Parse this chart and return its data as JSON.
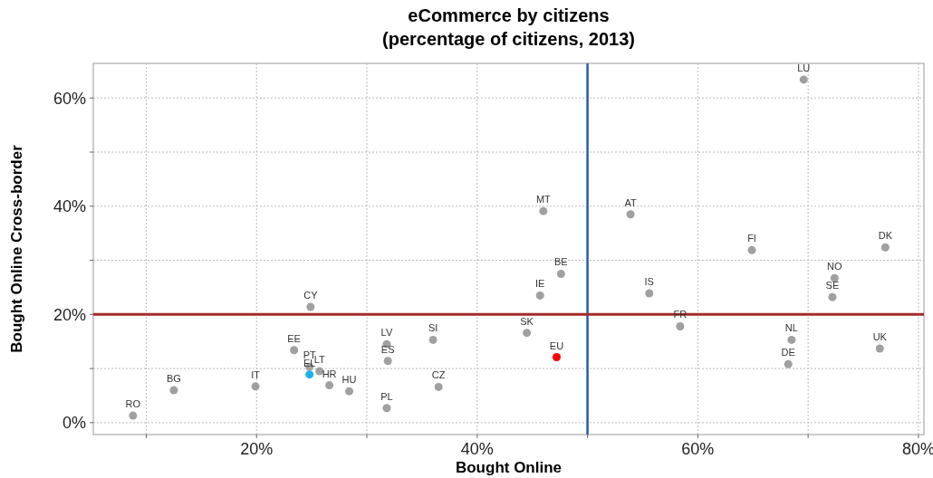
{
  "chart_data": {
    "type": "scatter",
    "title": "eCommerce by citizens",
    "subtitle": "(percentage of citizens, 2013)",
    "xlabel": "Bought Online",
    "ylabel": "Bought Online Cross-border",
    "xlim": [
      5.2,
      80.5
    ],
    "ylim": [
      -2.2,
      66.4
    ],
    "xticks": [
      {
        "value": 10,
        "label": null
      },
      {
        "value": 20,
        "label": "20%"
      },
      {
        "value": 30,
        "label": null
      },
      {
        "value": 40,
        "label": "40%"
      },
      {
        "value": 50,
        "label": null
      },
      {
        "value": 60,
        "label": "60%"
      },
      {
        "value": 70,
        "label": null
      },
      {
        "value": 80,
        "label": "80%"
      }
    ],
    "yticks": [
      {
        "value": 0,
        "label": "0%"
      },
      {
        "value": 10,
        "label": null
      },
      {
        "value": 20,
        "label": "20%"
      },
      {
        "value": 30,
        "label": null
      },
      {
        "value": 40,
        "label": "40%"
      },
      {
        "value": 50,
        "label": null
      },
      {
        "value": 60,
        "label": "60%"
      }
    ],
    "grid": true,
    "marker": "circle",
    "series": [
      {
        "color": "#a0a0a0",
        "x": [
          8.8,
          12.5,
          19.9,
          24.9,
          23.4,
          24.8,
          25.7,
          26.6,
          28.4,
          31.8,
          31.9,
          31.8,
          36.0,
          36.5,
          46.0,
          53.9,
          64.9,
          77.0,
          47.6,
          45.7,
          55.6,
          72.4,
          72.2,
          44.5,
          58.4,
          68.5,
          68.2,
          76.5,
          69.6
        ],
        "values": [
          1.3,
          6.0,
          6.7,
          21.4,
          13.4,
          10.3,
          9.5,
          6.9,
          5.8,
          14.5,
          11.4,
          2.7,
          15.3,
          6.6,
          39.1,
          38.5,
          31.9,
          32.4,
          27.5,
          23.5,
          23.9,
          26.7,
          23.2,
          16.6,
          17.8,
          15.3,
          10.8,
          13.7,
          63.4
        ]
      },
      {
        "color": "#ff0000",
        "x": [
          47.2
        ],
        "values": [
          12.1
        ]
      },
      {
        "color": "#1ab2ee",
        "x": [
          24.8
        ],
        "values": [
          8.9
        ]
      }
    ],
    "ref_lines": [
      {
        "axis": "x",
        "value": 50,
        "color": "#2a5caa"
      },
      {
        "axis": "y",
        "value": 20,
        "color": "#a52a2a"
      }
    ],
    "annotations": [
      {
        "text": "RO",
        "x": 8.8,
        "y": 1.3
      },
      {
        "text": "BG",
        "x": 12.5,
        "y": 6.0
      },
      {
        "text": "IT",
        "x": 19.9,
        "y": 6.7
      },
      {
        "text": "CY",
        "x": 24.9,
        "y": 21.4
      },
      {
        "text": "EE",
        "x": 23.4,
        "y": 13.4
      },
      {
        "text": "PT",
        "x": 24.8,
        "y": 10.3
      },
      {
        "text": "LT",
        "x": 25.7,
        "y": 9.5
      },
      {
        "text": "HR",
        "x": 26.6,
        "y": 6.9
      },
      {
        "text": "HU",
        "x": 28.4,
        "y": 5.8
      },
      {
        "text": "LV",
        "x": 31.8,
        "y": 14.5
      },
      {
        "text": "ES",
        "x": 31.9,
        "y": 11.4
      },
      {
        "text": "PL",
        "x": 31.8,
        "y": 2.7
      },
      {
        "text": "SI",
        "x": 36.0,
        "y": 15.3
      },
      {
        "text": "CZ",
        "x": 36.5,
        "y": 6.6
      },
      {
        "text": "MT",
        "x": 46.0,
        "y": 39.1
      },
      {
        "text": "AT",
        "x": 53.9,
        "y": 38.5
      },
      {
        "text": "FI",
        "x": 64.9,
        "y": 31.9
      },
      {
        "text": "DK",
        "x": 77.0,
        "y": 32.4
      },
      {
        "text": "BE",
        "x": 47.6,
        "y": 27.5
      },
      {
        "text": "IE",
        "x": 45.7,
        "y": 23.5
      },
      {
        "text": "IS",
        "x": 55.6,
        "y": 23.9
      },
      {
        "text": "NO",
        "x": 72.4,
        "y": 26.7
      },
      {
        "text": "SE",
        "x": 72.2,
        "y": 23.2
      },
      {
        "text": "SK",
        "x": 44.5,
        "y": 16.6
      },
      {
        "text": "FR",
        "x": 58.4,
        "y": 17.8
      },
      {
        "text": "NL",
        "x": 68.5,
        "y": 15.3
      },
      {
        "text": "DE",
        "x": 68.2,
        "y": 10.8
      },
      {
        "text": "UK",
        "x": 76.5,
        "y": 13.7
      },
      {
        "text": "LU",
        "x": 69.6,
        "y": 63.4
      },
      {
        "text": "EU",
        "x": 47.2,
        "y": 12.1
      },
      {
        "text": "EL",
        "x": 24.8,
        "y": 8.9
      }
    ]
  }
}
